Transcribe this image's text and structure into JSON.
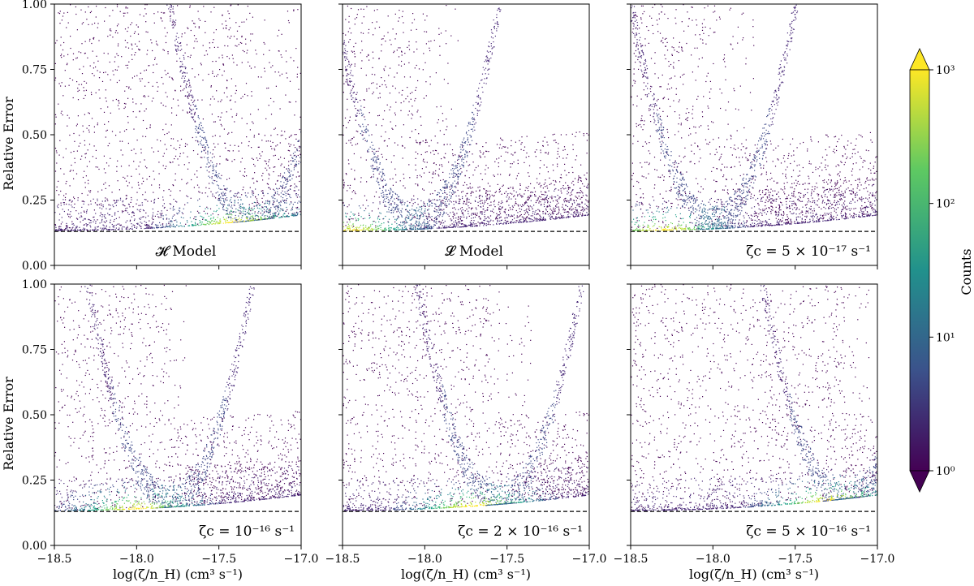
{
  "chart_data": {
    "type": "heatmap",
    "xlabel": "log(ζ/n_H) (cm³ s⁻¹)",
    "ylabel": "Relative Error",
    "xlim": [
      -18.5,
      -17.0
    ],
    "ylim": [
      0.0,
      1.0
    ],
    "x_ticks": [
      "−18.5",
      "−18.0",
      "−17.5",
      "−17.0"
    ],
    "x_tick_values": [
      -18.5,
      -18.0,
      -17.5,
      -17.0
    ],
    "y_ticks": [
      "0.00",
      "0.25",
      "0.50",
      "0.75",
      "1.00"
    ],
    "y_tick_values": [
      0.0,
      0.25,
      0.5,
      0.75,
      1.0
    ],
    "reference_line_y": 0.13,
    "colorbar": {
      "label": "Counts",
      "scale": "log",
      "range": [
        1,
        1000
      ],
      "ticks": [
        "10⁰",
        "10¹",
        "10²",
        "10³"
      ],
      "colormap": [
        "#440154",
        "#3b528b",
        "#21918c",
        "#5ec962",
        "#fde725"
      ]
    },
    "panels": [
      {
        "label": "𝓗 Model",
        "min_vertex_x": -17.3,
        "arm_x": -17.0,
        "peak_x": -17.4
      },
      {
        "label": "𝓛 Model",
        "min_vertex_x": -18.05,
        "arm_x": -17.8,
        "peak_x": -18.45
      },
      {
        "label": "ζc = 5 × 10⁻¹⁷ s⁻¹",
        "min_vertex_x": -18.0,
        "arm_x": -17.75,
        "peak_x": -18.3
      },
      {
        "label": "ζc = 10⁻¹⁶ s⁻¹",
        "min_vertex_x": -17.8,
        "arm_x": -17.7,
        "peak_x": -18.0
      },
      {
        "label": "ζc = 2 × 10⁻¹⁶ s⁻¹",
        "min_vertex_x": -17.55,
        "arm_x": -17.35,
        "peak_x": -17.7
      },
      {
        "label": "ζc = 5 × 10⁻¹⁶ s⁻¹",
        "min_vertex_x": -17.2,
        "arm_x": -17.05,
        "peak_x": -17.3
      }
    ]
  }
}
